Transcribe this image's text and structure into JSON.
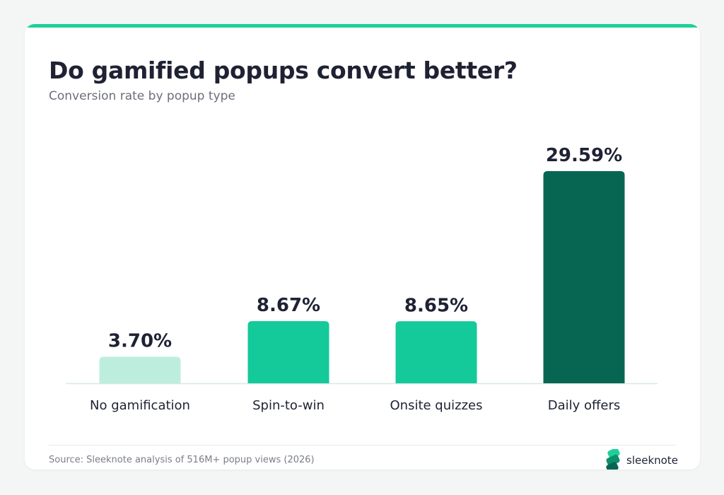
{
  "title": "Do gamified popups convert better?",
  "subtitle": "Conversion rate by popup type",
  "source": "Source: Sleeknote analysis of 516M+ popup views (2026)",
  "brand": {
    "name": "sleeknote",
    "icon": "sleeknote-logo-icon"
  },
  "colors": {
    "accent": "#1fcf9a",
    "text_dark": "#1e2233",
    "text_muted": "#6b6f7a",
    "axis": "#d7e8e1"
  },
  "chart_data": {
    "type": "bar",
    "categories": [
      "No gamification",
      "Spin-to-win",
      "Onsite quizzes",
      "Daily offers"
    ],
    "values": [
      3.7,
      8.67,
      8.65,
      29.59
    ],
    "value_labels": [
      "3.70%",
      "8.67%",
      "8.65%",
      "29.59%"
    ],
    "bar_colors": [
      "#bdeedd",
      "#14c99a",
      "#14c99a",
      "#076652"
    ],
    "unit": "%",
    "ylim": [
      0,
      29.59
    ],
    "grid": false,
    "legend": "none"
  }
}
